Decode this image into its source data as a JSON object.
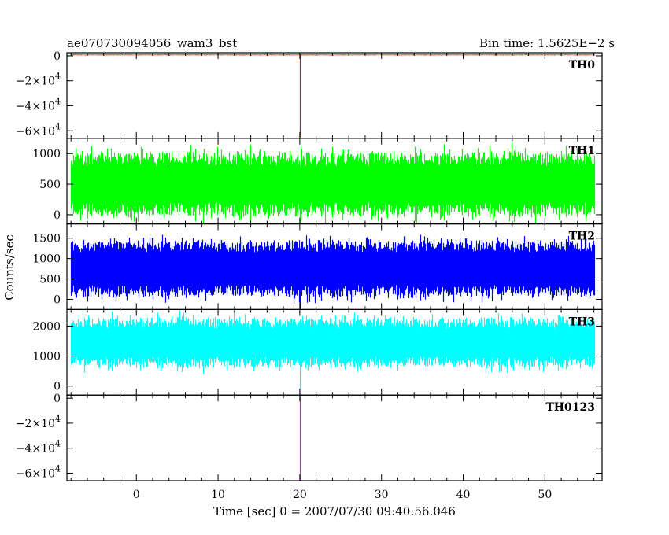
{
  "header": {
    "title": "ae070730094056_wam3_bst",
    "bin_time": "Bin time: 1.5625E−2 s"
  },
  "chart_data": {
    "type": "line",
    "title": "ae070730094056_wam3_bst",
    "subtitle": "Bin time: 1.5625E−2 s",
    "xlabel": "Time [sec] 0 = 2007/07/30 09:40:56.046",
    "ylabel": "Counts/sec",
    "xlim": [
      -8.5,
      57
    ],
    "x_ticks": [
      0,
      10,
      20,
      30,
      40,
      50
    ],
    "x_tick_labels": [
      "0",
      "10",
      "20",
      "30",
      "40",
      "50"
    ],
    "x_data_range": [
      -8,
      56
    ],
    "bin_time_s": 0.015625,
    "dropout_time": 20,
    "panels": [
      {
        "name": "TH0",
        "color": "#ff0000",
        "ylim": [
          -66000,
          2500
        ],
        "y_ticks": [
          0,
          -20000,
          -40000,
          -60000
        ],
        "y_tick_labels": [
          {
            "mantissa": "0",
            "exp": ""
          },
          {
            "mantissa": "−2×10",
            "exp": "4"
          },
          {
            "mantissa": "−4×10",
            "exp": "4"
          },
          {
            "mantissa": "−6×10",
            "exp": "4"
          }
        ],
        "baseline": 700,
        "noise": 250,
        "dropout_value": -66000
      },
      {
        "name": "TH1",
        "color": "#00ff00",
        "ylim": [
          -150,
          1250
        ],
        "y_ticks": [
          0,
          500,
          1000
        ],
        "y_tick_labels": [
          {
            "mantissa": "0",
            "exp": ""
          },
          {
            "mantissa": "500",
            "exp": ""
          },
          {
            "mantissa": "1000",
            "exp": ""
          }
        ],
        "baseline": 500,
        "noise": 390,
        "dropout_value": -150
      },
      {
        "name": "TH2",
        "color": "#0000ff",
        "ylim": [
          -250,
          1850
        ],
        "y_ticks": [
          0,
          500,
          1000,
          1500
        ],
        "y_tick_labels": [
          {
            "mantissa": "0",
            "exp": ""
          },
          {
            "mantissa": "500",
            "exp": ""
          },
          {
            "mantissa": "1000",
            "exp": ""
          },
          {
            "mantissa": "1500",
            "exp": ""
          }
        ],
        "baseline": 750,
        "noise": 520,
        "dropout_value": -250
      },
      {
        "name": "TH3",
        "color": "#00ffff",
        "ylim": [
          -300,
          2550
        ],
        "y_ticks": [
          0,
          1000,
          2000
        ],
        "y_tick_labels": [
          {
            "mantissa": "0",
            "exp": ""
          },
          {
            "mantissa": "1000",
            "exp": ""
          },
          {
            "mantissa": "2000",
            "exp": ""
          }
        ],
        "baseline": 1450,
        "noise": 620,
        "dropout_value": -300
      },
      {
        "name": "TH0123",
        "color": "#ff00ff",
        "ylim": [
          -66000,
          2500
        ],
        "y_ticks": [
          0,
          -20000,
          -40000,
          -60000
        ],
        "y_tick_labels": [
          {
            "mantissa": "0",
            "exp": ""
          },
          {
            "mantissa": "−2×10",
            "exp": "4"
          },
          {
            "mantissa": "−4×10",
            "exp": "4"
          },
          {
            "mantissa": "−6×10",
            "exp": "4"
          }
        ],
        "baseline": 3200,
        "noise": 500,
        "dropout_value": -66000
      }
    ]
  }
}
